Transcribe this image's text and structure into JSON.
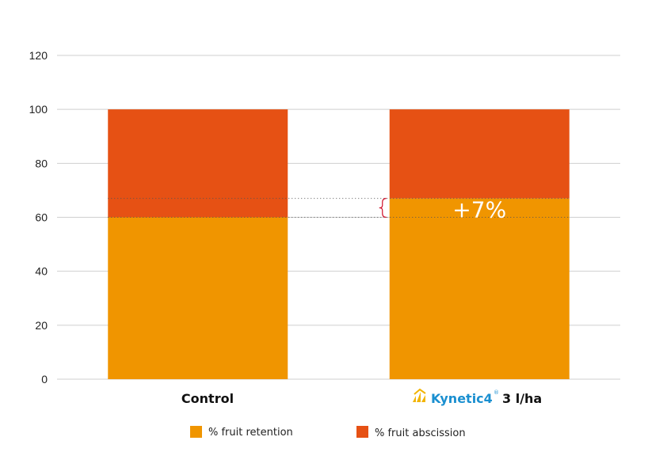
{
  "chart_data": {
    "type": "bar",
    "stacked": true,
    "categories": [
      "Control",
      "3 l/ha"
    ],
    "category_brand": {
      "index": 1,
      "text": "Kynetic4",
      "superscript": "®",
      "icon": "kynetic4-logo-icon"
    },
    "series": [
      {
        "name": "% fruit retention",
        "values": [
          60,
          67
        ],
        "color": "#f09500"
      },
      {
        "name": "% fruit abscission",
        "values": [
          40,
          33
        ],
        "color": "#e65114"
      }
    ],
    "ylim": [
      0,
      120
    ],
    "yticks": [
      0,
      20,
      40,
      60,
      80,
      100,
      120
    ],
    "grid": true,
    "legend_position": "bottom",
    "annotation": {
      "text": "+7%",
      "from": 60,
      "to": 67,
      "category_index": 1,
      "brace_color": "#d0102a"
    },
    "xlabel": "",
    "ylabel": ""
  }
}
